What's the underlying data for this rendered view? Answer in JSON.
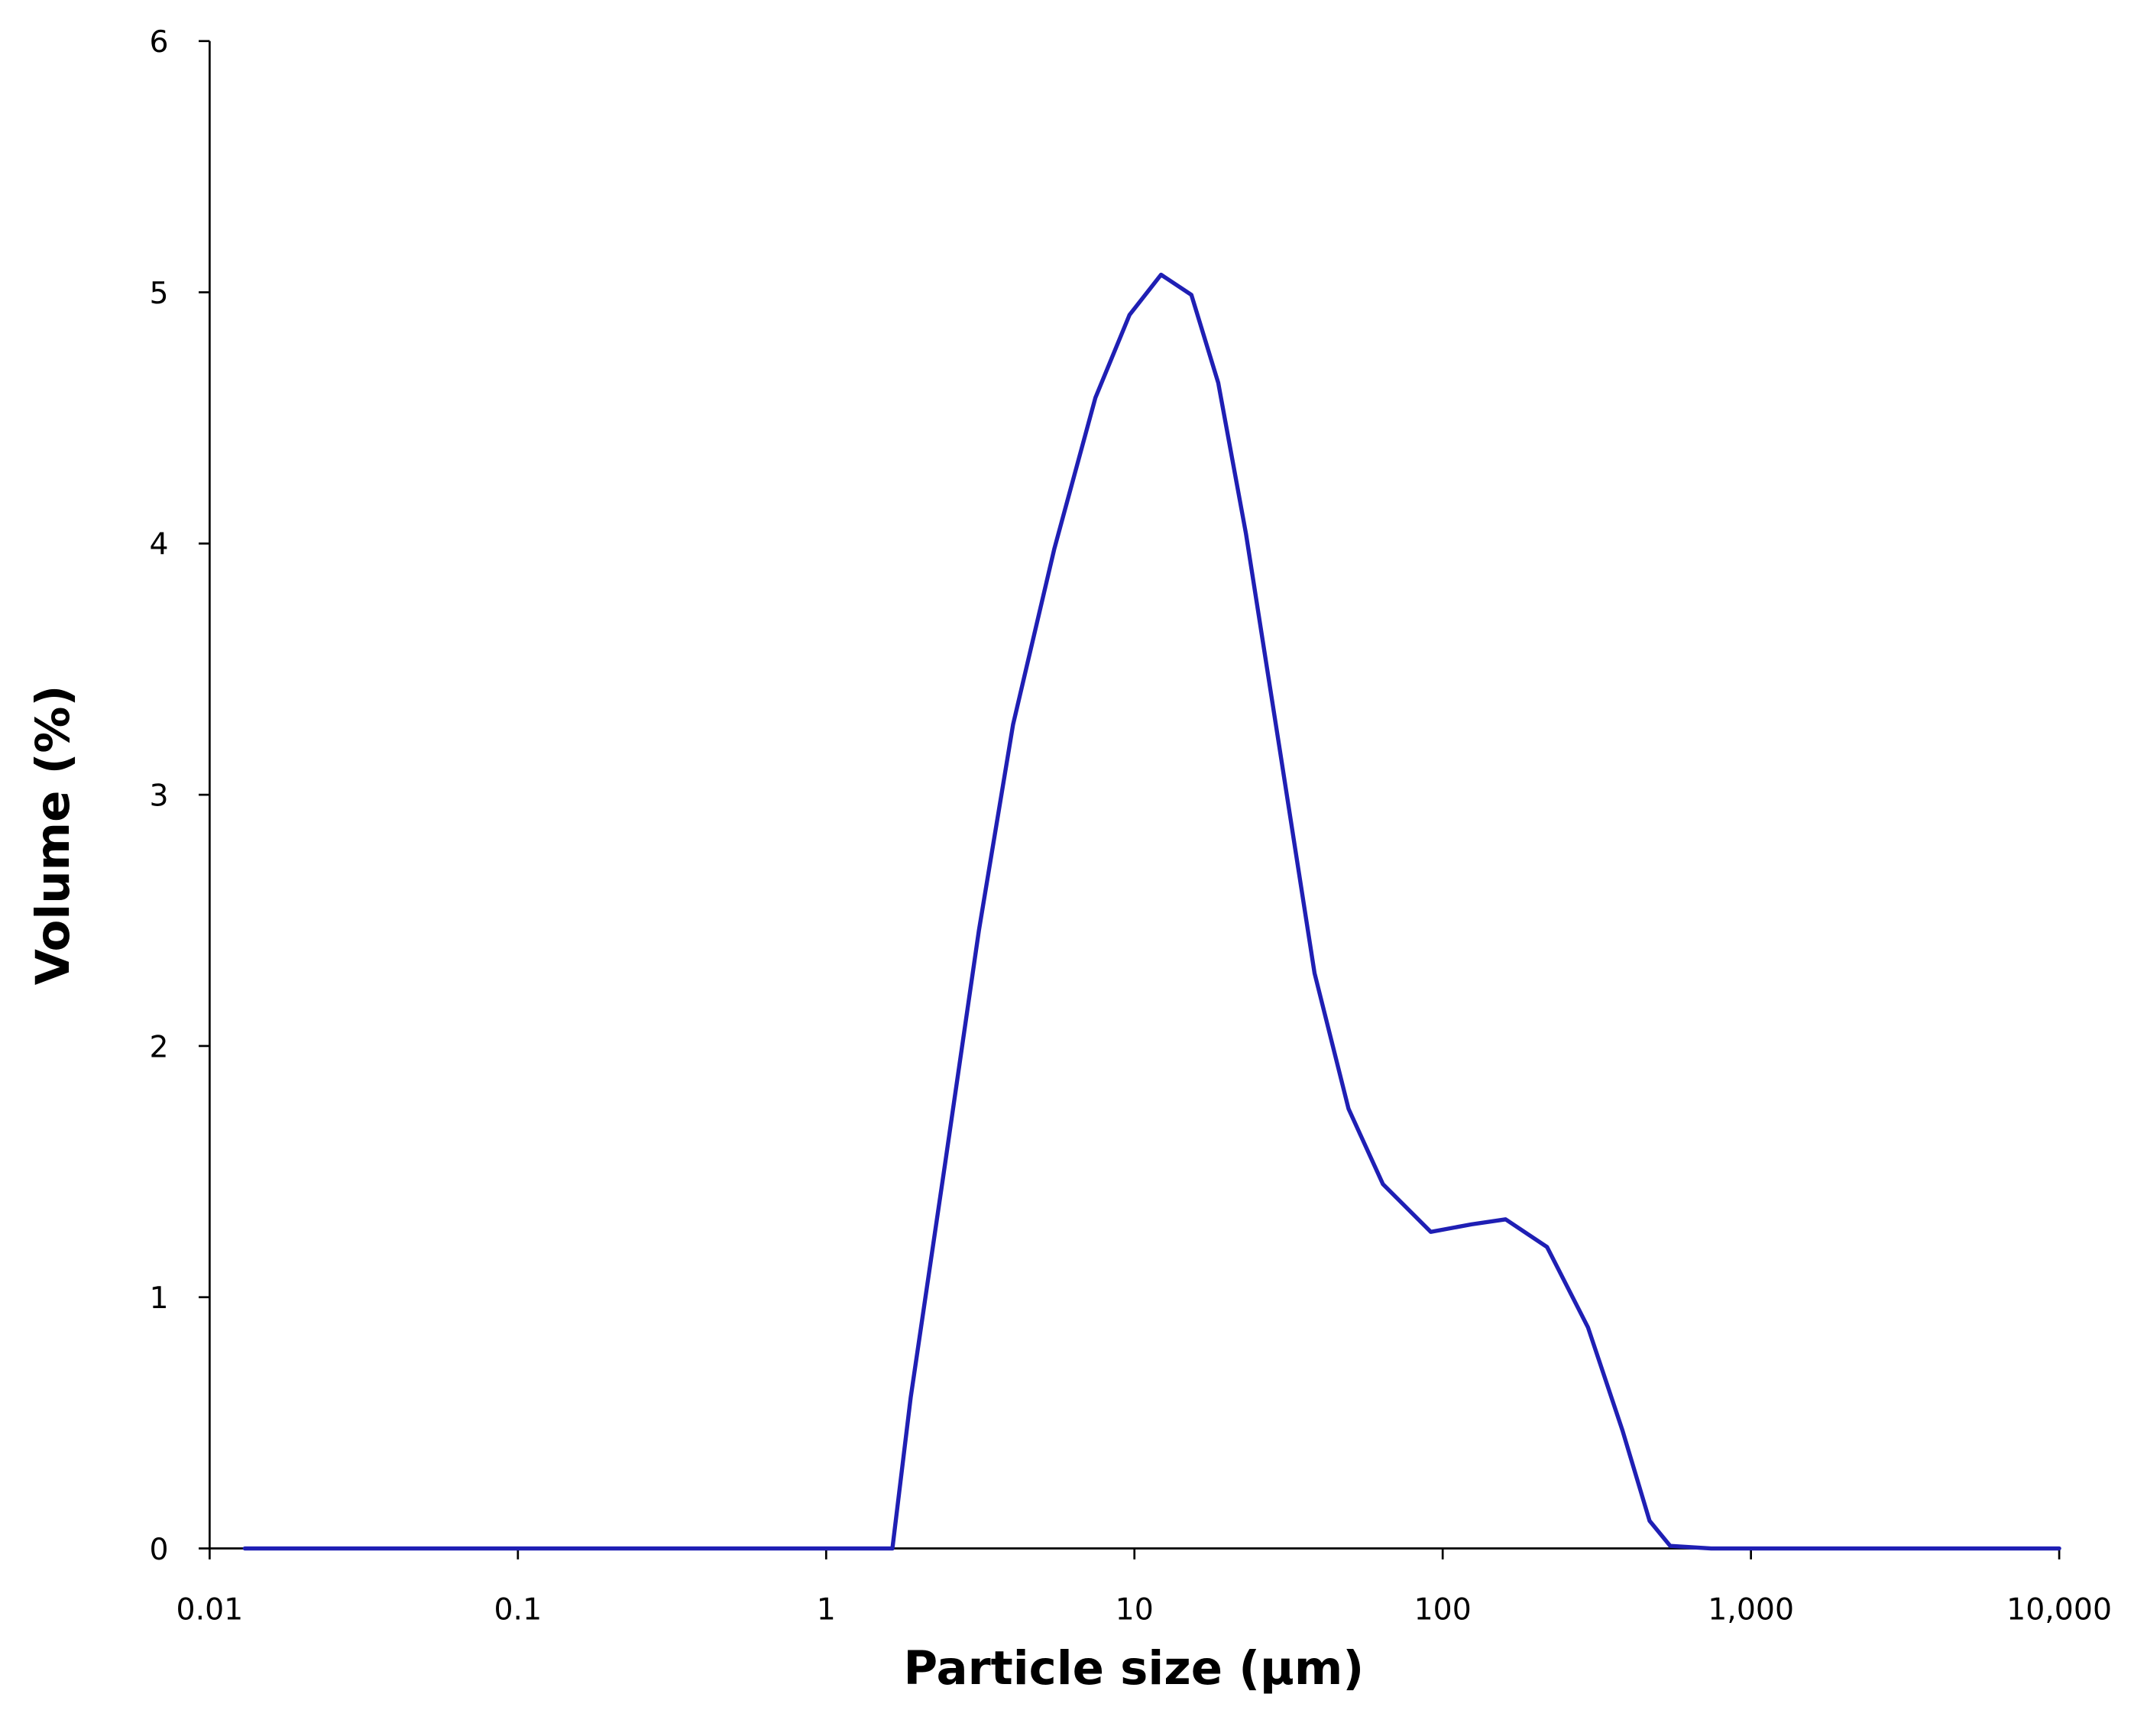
{
  "chart_data": {
    "type": "line",
    "x_label": "Particle size (μm)",
    "y_label": "Volume (%)",
    "x_log": true,
    "grid": false,
    "xlim": [
      0.01,
      10000
    ],
    "ylim": [
      0,
      6
    ],
    "xticks": [
      0.01,
      0.1,
      1,
      10,
      100,
      {
        "value": 1000,
        "label": "1,000"
      },
      {
        "value": 10000,
        "label": "10,000"
      }
    ],
    "yticks": [
      0,
      1,
      2,
      3,
      4,
      5,
      6
    ],
    "series": [
      {
        "color": "#1f1fb4",
        "x": [
          0.013,
          0.1,
          1,
          1.5,
          1.64,
          1.88,
          2.43,
          3.13,
          4.04,
          5.5,
          7.47,
          9.64,
          12.2,
          15.3,
          18.7,
          23,
          29.7,
          38.4,
          49.5,
          64,
          91.5,
          124,
          160,
          218,
          296,
          383,
          469,
          547,
          743,
          10000
        ],
        "values": [
          0,
          0,
          0,
          0,
          0,
          0.6,
          1.53,
          2.46,
          3.28,
          3.98,
          4.58,
          4.91,
          5.07,
          4.99,
          4.64,
          4.04,
          3.17,
          2.29,
          1.75,
          1.45,
          1.26,
          1.29,
          1.31,
          1.2,
          0.88,
          0.47,
          0.11,
          0.01,
          0,
          0
        ]
      }
    ]
  }
}
